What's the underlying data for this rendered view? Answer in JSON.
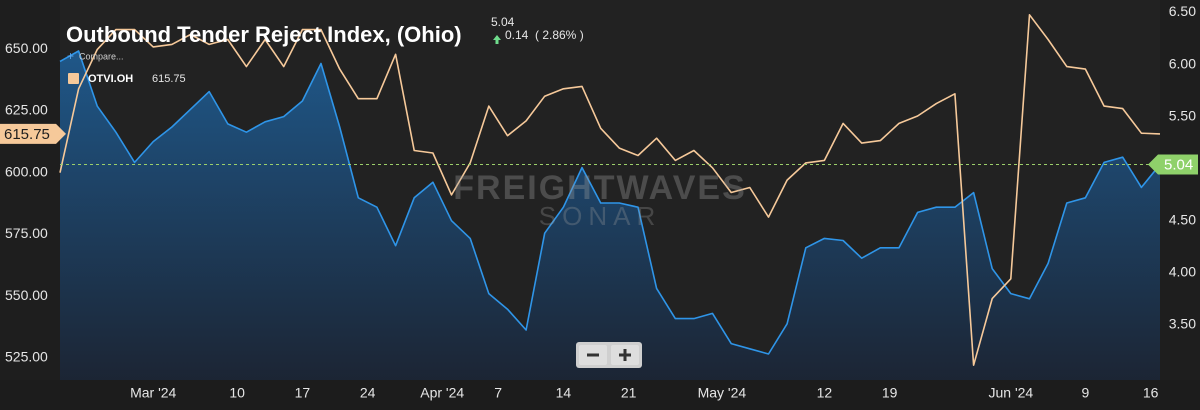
{
  "chart_data": {
    "type": "line",
    "title": "Outbound Tender Reject Index, (Ohio)",
    "change": 0.14,
    "change_percent": {
      "value": 2.86,
      "label": "( 2.86% )"
    },
    "compare_label": "Compare...",
    "watermark": [
      "FREIGHTWAVES",
      "SONAR"
    ],
    "x": [
      "2024-02-20",
      "2024-02-22",
      "2024-02-24",
      "2024-02-26",
      "2024-02-28",
      "2024-03-01",
      "2024-03-03",
      "2024-03-05",
      "2024-03-07",
      "2024-03-09",
      "2024-03-11",
      "2024-03-13",
      "2024-03-15",
      "2024-03-17",
      "2024-03-19",
      "2024-03-21",
      "2024-03-23",
      "2024-03-25",
      "2024-03-27",
      "2024-03-29",
      "2024-03-31",
      "2024-04-02",
      "2024-04-04",
      "2024-04-06",
      "2024-04-08",
      "2024-04-10",
      "2024-04-12",
      "2024-04-14",
      "2024-04-16",
      "2024-04-18",
      "2024-04-20",
      "2024-04-22",
      "2024-04-24",
      "2024-04-26",
      "2024-04-28",
      "2024-04-30",
      "2024-05-02",
      "2024-05-04",
      "2024-05-06",
      "2024-05-08",
      "2024-05-10",
      "2024-05-12",
      "2024-05-14",
      "2024-05-16",
      "2024-05-18",
      "2024-05-20",
      "2024-05-22",
      "2024-05-24",
      "2024-05-26",
      "2024-05-28",
      "2024-05-30",
      "2024-06-01",
      "2024-06-03",
      "2024-06-05",
      "2024-06-07",
      "2024-06-09",
      "2024-06-11",
      "2024-06-13",
      "2024-06-15",
      "2024-06-17"
    ],
    "xlim": [
      "2024-02-20",
      "2024-06-17"
    ],
    "xticks": [
      {
        "value": "2024-03-01",
        "label": "Mar '24"
      },
      {
        "value": "2024-03-10",
        "label": "10"
      },
      {
        "value": "2024-03-17",
        "label": "17"
      },
      {
        "value": "2024-03-24",
        "label": "24"
      },
      {
        "value": "2024-04-01",
        "label": "Apr '24"
      },
      {
        "value": "2024-04-07",
        "label": "7"
      },
      {
        "value": "2024-04-14",
        "label": "14"
      },
      {
        "value": "2024-04-21",
        "label": "21"
      },
      {
        "value": "2024-05-01",
        "label": "May '24"
      },
      {
        "value": "2024-05-12",
        "label": "12"
      },
      {
        "value": "2024-05-19",
        "label": "19"
      },
      {
        "value": "2024-06-01",
        "label": "Jun '24"
      },
      {
        "value": "2024-06-09",
        "label": "9"
      },
      {
        "value": "2024-06-16",
        "label": "16"
      }
    ],
    "ylim": [
      516,
      670
    ],
    "yticks": [
      {
        "value": 525,
        "label": "525.00"
      },
      {
        "value": 550,
        "label": "550.00"
      },
      {
        "value": 575,
        "label": "575.00"
      },
      {
        "value": 600,
        "label": "600.00"
      },
      {
        "value": 625,
        "label": "625.00"
      },
      {
        "value": 650,
        "label": "650.00"
      }
    ],
    "y2lim": [
      2.97,
      6.62
    ],
    "y2ticks": [
      {
        "value": 3.5,
        "label": "3.50"
      },
      {
        "value": 4,
        "label": "4.00"
      },
      {
        "value": 4.5,
        "label": "4.50"
      },
      {
        "value": 5,
        "label": "5.00"
      },
      {
        "value": 5.5,
        "label": "5.50"
      },
      {
        "value": 6,
        "label": "6.00"
      },
      {
        "value": 6.5,
        "label": "6.50"
      }
    ],
    "grid": false,
    "series": [
      {
        "color": "#2f95e8",
        "axis": "y2",
        "area": true,
        "values": [
          6.03,
          6.13,
          5.6,
          5.35,
          5.06,
          5.26,
          5.4,
          5.57,
          5.74,
          5.43,
          5.35,
          5.45,
          5.5,
          5.65,
          6.01,
          5.4,
          4.72,
          4.63,
          4.26,
          4.72,
          4.87,
          4.5,
          4.33,
          3.8,
          3.65,
          3.45,
          4.38,
          4.63,
          5.01,
          4.67,
          4.67,
          4.63,
          3.85,
          3.56,
          3.56,
          3.61,
          3.32,
          3.27,
          3.22,
          3.51,
          4.24,
          4.33,
          4.31,
          4.14,
          4.24,
          4.24,
          4.58,
          4.63,
          4.63,
          4.77,
          4.04,
          3.8,
          3.75,
          4.09,
          4.67,
          4.72,
          5.06,
          5.11,
          4.82,
          5.04
        ]
      },
      {
        "name": "OTVI.OH",
        "color": "#f6c99a",
        "axis": "y",
        "values": [
          600,
          634,
          650,
          658,
          658,
          651,
          652,
          656,
          652,
          654,
          643,
          654,
          643,
          658,
          658,
          642,
          630,
          630,
          648,
          609,
          608,
          591,
          604,
          627,
          615,
          621,
          631,
          634,
          635,
          618,
          610,
          607,
          614,
          605,
          609,
          602,
          592,
          594,
          582,
          597,
          604,
          605,
          620,
          612,
          613,
          620,
          623,
          628,
          632,
          522,
          549,
          557,
          664,
          654,
          643,
          642,
          627,
          626,
          616,
          615.75
        ]
      }
    ]
  }
}
